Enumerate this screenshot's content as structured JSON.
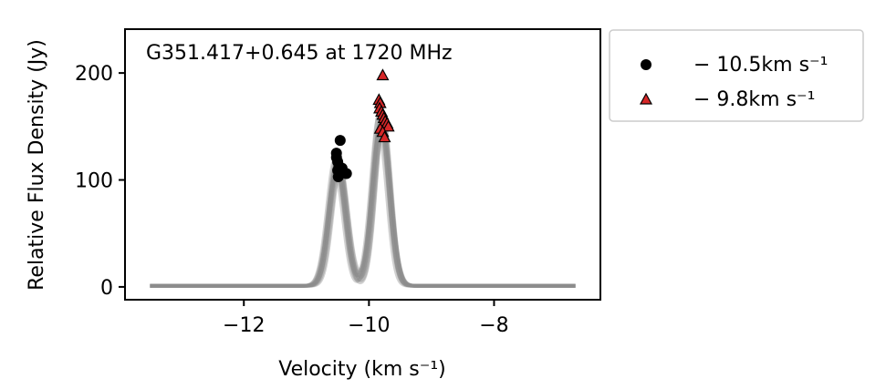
{
  "chart_data": {
    "type": "line",
    "title": "G351.417+0.645 at 1720 MHz",
    "xlabel": "Velocity (km s⁻¹)",
    "ylabel": "Relative Flux Density (Jy)",
    "xlim": [
      -13.9,
      -6.3
    ],
    "ylim": [
      -12,
      241
    ],
    "xticks": [
      -12,
      -10,
      -8
    ],
    "xtick_labels": [
      "−12",
      "−10",
      "−8"
    ],
    "yticks": [
      0,
      100,
      200
    ],
    "ytick_labels": [
      "0",
      "100",
      "200"
    ],
    "grid": false,
    "legend_position": "outside-top-right",
    "colors": {
      "spectra": "#8c8c8c",
      "peak1_marker": "#000000",
      "peak2_marker": "#d62728",
      "peak2_edge": "#000000"
    },
    "spectra": {
      "x_range": [
        -13.5,
        -6.7
      ],
      "count": 12,
      "peak1_center": -10.5,
      "peak1_amplitudes": [
        103,
        105,
        107,
        110,
        112,
        115,
        118,
        120,
        122,
        124,
        106,
        109
      ],
      "peak2_center": -9.8,
      "peak2_amplitudes": [
        140,
        145,
        148,
        150,
        153,
        155,
        158,
        160,
        162,
        165,
        147,
        151
      ],
      "width": 0.13
    },
    "series": [
      {
        "name": "− 10.5km s⁻¹",
        "marker": "circle",
        "points": [
          [
            -10.52,
            125
          ],
          [
            -10.52,
            121
          ],
          [
            -10.5,
            117
          ],
          [
            -10.48,
            113
          ],
          [
            -10.46,
            137
          ],
          [
            -10.5,
            109
          ],
          [
            -10.47,
            105
          ],
          [
            -10.43,
            111
          ],
          [
            -10.4,
            107
          ],
          [
            -10.36,
            106
          ],
          [
            -10.49,
            103
          ]
        ]
      },
      {
        "name": "− 9.8km s⁻¹",
        "marker": "triangle",
        "points": [
          [
            -9.78,
            198
          ],
          [
            -9.84,
            175
          ],
          [
            -9.82,
            172
          ],
          [
            -9.83,
            167
          ],
          [
            -9.8,
            164
          ],
          [
            -9.78,
            161
          ],
          [
            -9.76,
            158
          ],
          [
            -9.74,
            155
          ],
          [
            -9.71,
            153
          ],
          [
            -9.69,
            150
          ],
          [
            -9.82,
            148
          ],
          [
            -9.78,
            145
          ],
          [
            -9.75,
            140
          ]
        ]
      }
    ]
  }
}
